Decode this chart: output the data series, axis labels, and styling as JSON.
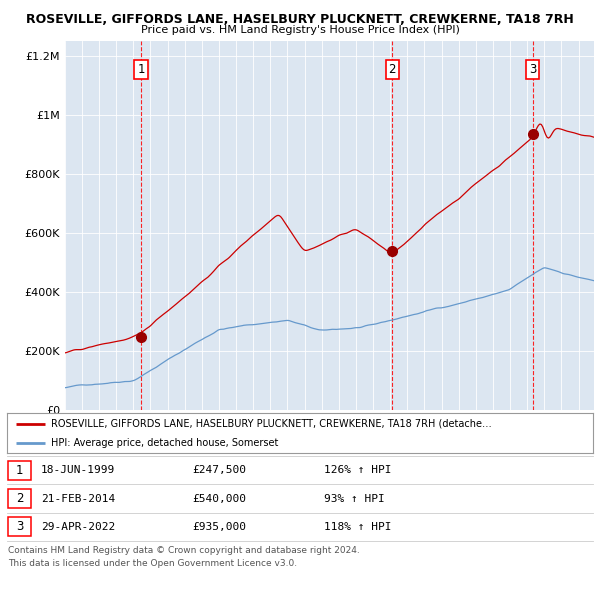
{
  "title1": "ROSEVILLE, GIFFORDS LANE, HASELBURY PLUCKNETT, CREWKERNE, TA18 7RH",
  "title2": "Price paid vs. HM Land Registry's House Price Index (HPI)",
  "bg_color": "#dce6f1",
  "red_line_color": "#cc0000",
  "blue_line_color": "#6699cc",
  "sale_markers": [
    {
      "date_num": 1999.46,
      "price": 247500,
      "label": "1"
    },
    {
      "date_num": 2014.12,
      "price": 540000,
      "label": "2"
    },
    {
      "date_num": 2022.32,
      "price": 935000,
      "label": "3"
    }
  ],
  "table_rows": [
    {
      "num": "1",
      "date": "18-JUN-1999",
      "price": "£247,500",
      "hpi": "126% ↑ HPI"
    },
    {
      "num": "2",
      "date": "21-FEB-2014",
      "price": "£540,000",
      "hpi": "93% ↑ HPI"
    },
    {
      "num": "3",
      "date": "29-APR-2022",
      "price": "£935,000",
      "hpi": "118% ↑ HPI"
    }
  ],
  "legend_line1": "ROSEVILLE, GIFFORDS LANE, HASELBURY PLUCKNETT, CREWKERNE, TA18 7RH (detache…",
  "legend_line2": "HPI: Average price, detached house, Somerset",
  "footer1": "Contains HM Land Registry data © Crown copyright and database right 2024.",
  "footer2": "This data is licensed under the Open Government Licence v3.0.",
  "ylim": [
    0,
    1250000
  ],
  "xlim_start": 1995.0,
  "xlim_end": 2025.9,
  "yticks": [
    0,
    200000,
    400000,
    600000,
    800000,
    1000000,
    1200000
  ],
  "ylabels": [
    "£0",
    "£200K",
    "£400K",
    "£600K",
    "£800K",
    "£1M",
    "£1.2M"
  ]
}
